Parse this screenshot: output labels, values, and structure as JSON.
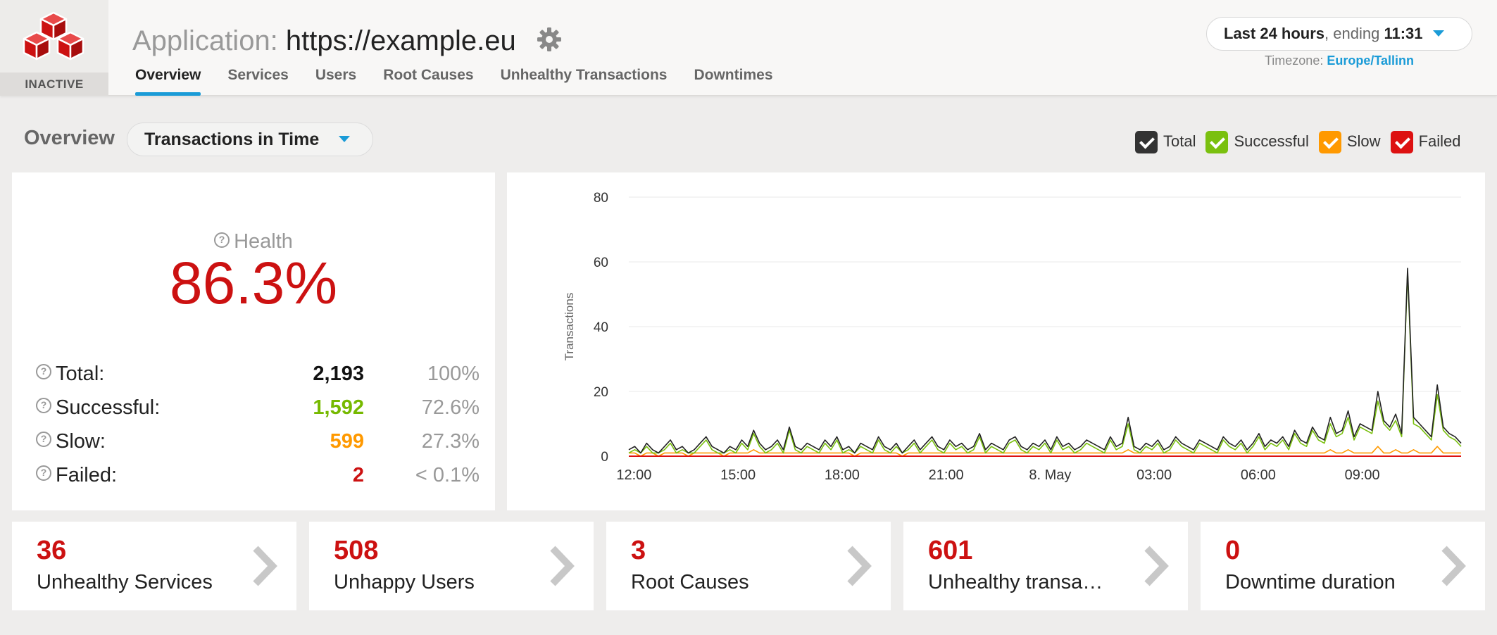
{
  "header": {
    "app_status": "INACTIVE",
    "app_label": "Application: ",
    "app_url": "https://example.eu",
    "tabs": [
      {
        "label": "Overview",
        "active": true
      },
      {
        "label": "Services",
        "active": false
      },
      {
        "label": "Users",
        "active": false
      },
      {
        "label": "Root Causes",
        "active": false
      },
      {
        "label": "Unhealthy Transactions",
        "active": false
      },
      {
        "label": "Downtimes",
        "active": false
      }
    ],
    "time_range": {
      "period": "Last 24 hours",
      "ending_text": ", ending ",
      "end_time": "11:31"
    },
    "timezone": {
      "label": "Timezone: ",
      "value": "Europe/Tallinn"
    }
  },
  "overview": {
    "label": "Overview",
    "view_select": "Transactions in Time"
  },
  "legend": [
    {
      "label": "Total",
      "color": "#333333"
    },
    {
      "label": "Successful",
      "color": "#7ac00f"
    },
    {
      "label": "Slow",
      "color": "#ff9900"
    },
    {
      "label": "Failed",
      "color": "#dd1111"
    }
  ],
  "health": {
    "title": "Health",
    "value": "86.3%",
    "stats": [
      {
        "name": "Total:",
        "value": "2,193",
        "pct": "100%",
        "color": "#111111"
      },
      {
        "name": "Successful:",
        "value": "1,592",
        "pct": "72.6%",
        "color": "#76b900"
      },
      {
        "name": "Slow:",
        "value": "599",
        "pct": "27.3%",
        "color": "#ff9900"
      },
      {
        "name": "Failed:",
        "value": "2",
        "pct": "< 0.1%",
        "color": "#cc1111"
      }
    ]
  },
  "chart_data": {
    "type": "line",
    "ylabel": "Transactions",
    "xlabel": "",
    "ylim": [
      0,
      80
    ],
    "yticks": [
      0,
      20,
      40,
      60,
      80
    ],
    "xticks": [
      "12:00",
      "15:00",
      "18:00",
      "21:00",
      "8. May",
      "03:00",
      "06:00",
      "09:00"
    ],
    "x_range_hours": [
      11.85,
      35.85
    ],
    "xtick_hours": [
      12,
      15,
      18,
      21,
      24,
      27,
      30,
      33
    ],
    "grid": true,
    "series": [
      {
        "name": "Total",
        "color": "#222222",
        "values": [
          2,
          3,
          1,
          4,
          2,
          1,
          3,
          5,
          2,
          3,
          1,
          2,
          4,
          6,
          3,
          2,
          1,
          3,
          2,
          5,
          3,
          8,
          4,
          2,
          3,
          5,
          2,
          9,
          3,
          2,
          4,
          3,
          2,
          5,
          3,
          6,
          2,
          3,
          1,
          4,
          3,
          2,
          6,
          3,
          2,
          4,
          1,
          3,
          5,
          2,
          4,
          6,
          3,
          2,
          5,
          3,
          4,
          2,
          3,
          7,
          2,
          4,
          3,
          2,
          5,
          6,
          3,
          2,
          4,
          3,
          5,
          2,
          6,
          3,
          4,
          2,
          3,
          5,
          4,
          3,
          2,
          6,
          3,
          4,
          12,
          3,
          2,
          4,
          3,
          5,
          2,
          3,
          6,
          4,
          3,
          2,
          5,
          4,
          3,
          2,
          6,
          4,
          3,
          5,
          2,
          4,
          7,
          3,
          5,
          4,
          6,
          3,
          8,
          5,
          4,
          9,
          6,
          5,
          12,
          7,
          8,
          14,
          6,
          10,
          9,
          8,
          20,
          11,
          9,
          13,
          7,
          58,
          12,
          10,
          8,
          6,
          22,
          9,
          7,
          6,
          4
        ]
      },
      {
        "name": "Successful",
        "color": "#7ac00f",
        "values": [
          1,
          2,
          1,
          3,
          1,
          1,
          2,
          4,
          1,
          2,
          1,
          1,
          3,
          5,
          2,
          1,
          1,
          2,
          1,
          4,
          2,
          7,
          3,
          1,
          2,
          4,
          1,
          8,
          2,
          1,
          3,
          2,
          1,
          4,
          2,
          5,
          1,
          2,
          1,
          3,
          2,
          1,
          5,
          2,
          1,
          3,
          1,
          2,
          4,
          1,
          3,
          5,
          2,
          1,
          4,
          2,
          3,
          1,
          2,
          6,
          1,
          3,
          2,
          1,
          4,
          5,
          2,
          1,
          3,
          2,
          4,
          1,
          5,
          2,
          3,
          1,
          2,
          4,
          3,
          2,
          1,
          5,
          2,
          3,
          10,
          2,
          1,
          3,
          2,
          4,
          1,
          2,
          5,
          3,
          2,
          1,
          4,
          3,
          2,
          1,
          5,
          3,
          2,
          4,
          1,
          3,
          6,
          2,
          4,
          3,
          5,
          2,
          7,
          4,
          3,
          8,
          5,
          4,
          10,
          6,
          7,
          12,
          5,
          9,
          8,
          7,
          17,
          10,
          8,
          11,
          6,
          57,
          10,
          9,
          7,
          5,
          19,
          8,
          6,
          5,
          3
        ]
      },
      {
        "name": "Slow",
        "color": "#ff9900",
        "values": [
          1,
          1,
          0,
          1,
          1,
          0,
          1,
          1,
          1,
          1,
          0,
          1,
          1,
          1,
          1,
          1,
          0,
          1,
          1,
          1,
          1,
          2,
          1,
          1,
          1,
          1,
          1,
          1,
          1,
          1,
          1,
          1,
          1,
          1,
          1,
          1,
          1,
          1,
          0,
          1,
          1,
          1,
          1,
          1,
          1,
          1,
          0,
          1,
          1,
          1,
          1,
          1,
          1,
          1,
          1,
          1,
          1,
          1,
          1,
          1,
          1,
          1,
          1,
          1,
          1,
          1,
          1,
          1,
          1,
          1,
          1,
          1,
          1,
          1,
          1,
          1,
          1,
          1,
          1,
          1,
          1,
          1,
          1,
          1,
          2,
          1,
          1,
          1,
          1,
          1,
          1,
          1,
          1,
          1,
          1,
          1,
          1,
          1,
          1,
          1,
          1,
          1,
          1,
          1,
          1,
          1,
          1,
          1,
          1,
          1,
          1,
          1,
          1,
          1,
          1,
          1,
          1,
          1,
          2,
          1,
          1,
          2,
          1,
          1,
          1,
          1,
          3,
          1,
          1,
          2,
          1,
          1,
          2,
          1,
          1,
          1,
          3,
          1,
          1,
          1,
          1
        ]
      },
      {
        "name": "Failed",
        "color": "#dd1111",
        "values": [
          0,
          0,
          0,
          0,
          0,
          0,
          0,
          0,
          0,
          0,
          0,
          0,
          0,
          0,
          0,
          0,
          0,
          0,
          0,
          0,
          0,
          0,
          0,
          0,
          0,
          0,
          0,
          0,
          0,
          0,
          0,
          0,
          0,
          0,
          0,
          0,
          0,
          0,
          0,
          0,
          0,
          0,
          0,
          0,
          0,
          0,
          0,
          0,
          0,
          0,
          0,
          0,
          0,
          0,
          0,
          0,
          0,
          0,
          0,
          0,
          0,
          0,
          0,
          0,
          0,
          0,
          0,
          0,
          0,
          0,
          0,
          0,
          0,
          0,
          0,
          0,
          0,
          0,
          0,
          0,
          0,
          0,
          0,
          0,
          0,
          0,
          0,
          0,
          0,
          0,
          0,
          0,
          0,
          0,
          0,
          0,
          0,
          0,
          0,
          0,
          0,
          0,
          0,
          0,
          0,
          0,
          0,
          0,
          0,
          0,
          0,
          0,
          0,
          0,
          0,
          0,
          0,
          0,
          0,
          0,
          0,
          0,
          0,
          0,
          0,
          0,
          0,
          0,
          0,
          0,
          0,
          0,
          0,
          0,
          0,
          0,
          0,
          0,
          0,
          0,
          0
        ]
      }
    ]
  },
  "tiles": [
    {
      "value": "36",
      "label": "Unhealthy Services"
    },
    {
      "value": "508",
      "label": "Unhappy Users"
    },
    {
      "value": "3",
      "label": "Root Causes"
    },
    {
      "value": "601",
      "label": "Unhealthy transa…"
    },
    {
      "value": "0",
      "label": "Downtime duration"
    }
  ]
}
